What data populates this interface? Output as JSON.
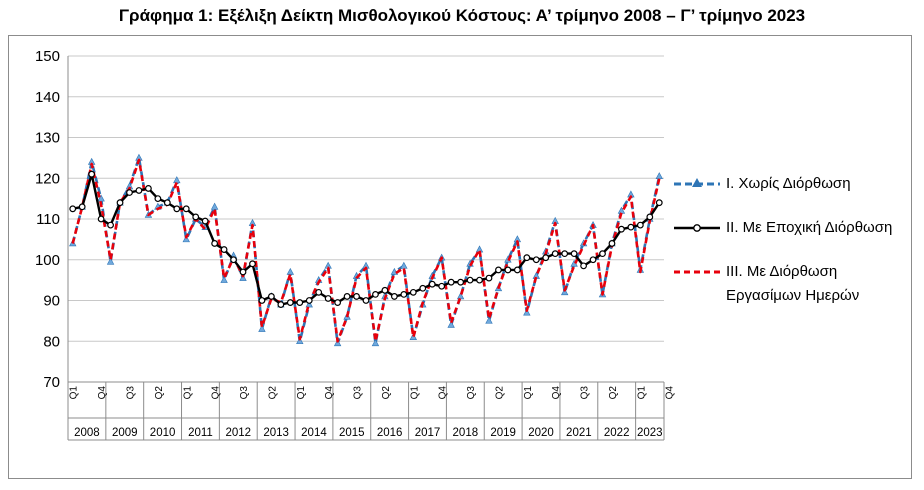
{
  "chart_data": {
    "type": "line",
    "title": "Γράφημα 1: Εξέλιξη Δείκτη Μισθολογικού Κόστους:  Α’ τρίμηνο 2008 – Γ’ τρίμηνο 2023",
    "xlabel": "",
    "ylabel": "",
    "ylim": [
      70,
      150
    ],
    "yticks": [
      "70",
      "80",
      "90",
      "100",
      "110",
      "120",
      "130",
      "140",
      "150"
    ],
    "grid": true,
    "legend_position": "right",
    "years": [
      "2008",
      "2009",
      "2010",
      "2011",
      "2012",
      "2013",
      "2014",
      "2015",
      "2016",
      "2017",
      "2018",
      "2019",
      "2020",
      "2021",
      "2022",
      "2023"
    ],
    "quarter_labels": [
      "Q1",
      "Q4",
      "Q3",
      "Q2",
      "Q1",
      "Q4",
      "Q3",
      "Q2",
      "Q1",
      "Q4",
      "Q3",
      "Q2",
      "Q1",
      "Q4",
      "Q3",
      "Q2",
      "Q1",
      "Q4",
      "Q3",
      "Q2",
      "Q1",
      "Q4"
    ],
    "series": [
      {
        "name": "I. Χωρίς Διόρθωση",
        "color": "#2e75b6",
        "values": [
          104,
          113,
          124,
          115,
          99.5,
          114,
          118,
          125,
          111,
          113,
          114,
          119.5,
          105,
          110,
          108,
          113,
          95,
          101,
          95.5,
          109,
          83,
          91,
          89,
          97,
          80,
          89,
          95,
          98.5,
          79.5,
          86,
          96,
          98.5,
          79.5,
          91,
          97,
          98.5,
          81,
          89,
          96,
          100.5,
          84,
          91,
          99,
          102.5,
          85,
          93,
          100,
          105,
          87,
          96,
          102,
          109.5,
          92,
          99,
          104,
          108.5,
          91.5,
          104,
          112,
          116,
          97.5,
          110,
          120.5
        ]
      },
      {
        "name": "II. Με Εποχική Διόρθωση",
        "color": "#000000",
        "values": [
          112.5,
          113,
          121,
          110,
          108.5,
          114,
          116.5,
          117,
          117.5,
          115,
          114,
          112.5,
          112.5,
          110.5,
          109.5,
          104,
          102.5,
          100,
          97,
          99,
          90,
          91,
          89,
          89.5,
          89.5,
          90,
          92,
          90.5,
          89.5,
          91,
          91,
          90,
          91.5,
          92.5,
          91,
          91.5,
          92,
          93,
          94,
          93.5,
          94.5,
          94.5,
          95,
          95,
          95.5,
          97.5,
          97.5,
          97.5,
          100.5,
          100,
          100.5,
          101.5,
          101.5,
          101.5,
          98.5,
          100,
          101.5,
          104,
          107.5,
          108,
          108.5,
          110.5,
          114
        ]
      },
      {
        "name": "III. Με Διόρθωση Εργασίμων Ημερών",
        "color": "#e8000b",
        "values": [
          104,
          113,
          123.5,
          113.5,
          100,
          114,
          117.5,
          124.5,
          111,
          112.5,
          113.5,
          119,
          105.5,
          110,
          107.5,
          112.5,
          95.5,
          100.5,
          96,
          108.5,
          83.5,
          90.5,
          89.5,
          96.5,
          80.5,
          89.5,
          94.5,
          98,
          80,
          86,
          95.5,
          98,
          80,
          90.5,
          96.5,
          98,
          81,
          89.5,
          95.5,
          100.5,
          84.5,
          91,
          98.5,
          102.5,
          85.5,
          93,
          99.5,
          104.5,
          87.5,
          96,
          101.5,
          109,
          92.5,
          98.5,
          103.5,
          108.5,
          91.5,
          103.5,
          111.5,
          115.5,
          97,
          109.5,
          120
        ]
      }
    ]
  }
}
